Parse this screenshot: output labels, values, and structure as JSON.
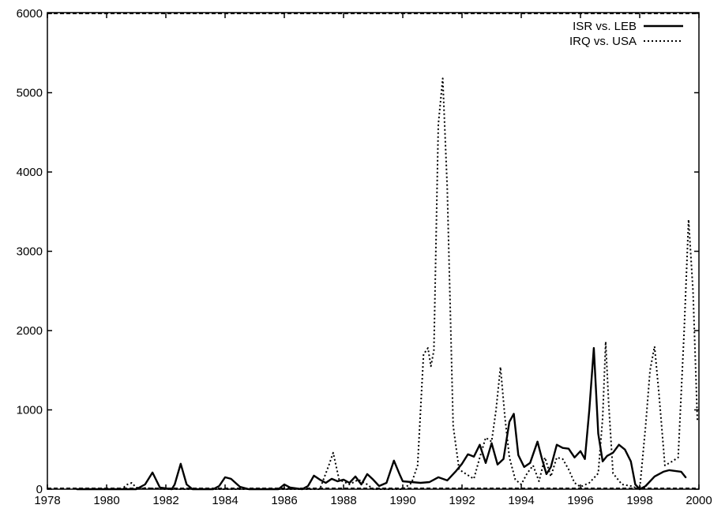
{
  "chart_data": {
    "type": "line",
    "title": "",
    "xlabel": "",
    "ylabel": "",
    "xlim": [
      1978,
      2000
    ],
    "ylim": [
      0,
      6000
    ],
    "xticks": [
      1978,
      1980,
      1982,
      1984,
      1986,
      1988,
      1990,
      1992,
      1994,
      1996,
      1998,
      2000
    ],
    "yticks": [
      0,
      1000,
      2000,
      3000,
      4000,
      5000,
      6000
    ],
    "grid": false,
    "legend_position": "top-right",
    "series": [
      {
        "name": "ISR vs. LEB",
        "style": "solid",
        "color": "#000000",
        "points": [
          [
            1979.0,
            0
          ],
          [
            1980.0,
            0
          ],
          [
            1981.0,
            0
          ],
          [
            1981.3,
            60
          ],
          [
            1981.55,
            210
          ],
          [
            1981.8,
            20
          ],
          [
            1982.2,
            0
          ],
          [
            1982.3,
            60
          ],
          [
            1982.5,
            320
          ],
          [
            1982.7,
            60
          ],
          [
            1982.9,
            0
          ],
          [
            1983.6,
            0
          ],
          [
            1983.8,
            40
          ],
          [
            1984.0,
            150
          ],
          [
            1984.2,
            130
          ],
          [
            1984.5,
            30
          ],
          [
            1984.8,
            0
          ],
          [
            1985.8,
            0
          ],
          [
            1986.0,
            60
          ],
          [
            1986.2,
            20
          ],
          [
            1986.6,
            0
          ],
          [
            1986.8,
            40
          ],
          [
            1987.0,
            170
          ],
          [
            1987.2,
            120
          ],
          [
            1987.4,
            80
          ],
          [
            1987.6,
            130
          ],
          [
            1987.8,
            100
          ],
          [
            1988.0,
            120
          ],
          [
            1988.2,
            80
          ],
          [
            1988.4,
            160
          ],
          [
            1988.6,
            60
          ],
          [
            1988.8,
            190
          ],
          [
            1989.0,
            120
          ],
          [
            1989.2,
            40
          ],
          [
            1989.45,
            80
          ],
          [
            1989.7,
            360
          ],
          [
            1989.9,
            180
          ],
          [
            1990.0,
            100
          ],
          [
            1990.3,
            90
          ],
          [
            1990.6,
            80
          ],
          [
            1990.9,
            90
          ],
          [
            1991.2,
            150
          ],
          [
            1991.5,
            110
          ],
          [
            1991.8,
            230
          ],
          [
            1992.0,
            320
          ],
          [
            1992.2,
            440
          ],
          [
            1992.4,
            410
          ],
          [
            1992.6,
            560
          ],
          [
            1992.8,
            330
          ],
          [
            1993.0,
            580
          ],
          [
            1993.2,
            310
          ],
          [
            1993.4,
            380
          ],
          [
            1993.6,
            850
          ],
          [
            1993.75,
            950
          ],
          [
            1993.9,
            430
          ],
          [
            1994.1,
            280
          ],
          [
            1994.3,
            330
          ],
          [
            1994.55,
            600
          ],
          [
            1994.7,
            380
          ],
          [
            1994.85,
            190
          ],
          [
            1995.0,
            280
          ],
          [
            1995.2,
            560
          ],
          [
            1995.4,
            520
          ],
          [
            1995.6,
            510
          ],
          [
            1995.8,
            400
          ],
          [
            1996.0,
            480
          ],
          [
            1996.15,
            380
          ],
          [
            1996.3,
            1000
          ],
          [
            1996.45,
            1780
          ],
          [
            1996.6,
            700
          ],
          [
            1996.75,
            350
          ],
          [
            1996.9,
            420
          ],
          [
            1997.1,
            460
          ],
          [
            1997.3,
            560
          ],
          [
            1997.5,
            500
          ],
          [
            1997.7,
            350
          ],
          [
            1997.85,
            60
          ],
          [
            1998.0,
            0
          ],
          [
            1998.2,
            40
          ],
          [
            1998.5,
            160
          ],
          [
            1998.8,
            220
          ],
          [
            1999.0,
            240
          ],
          [
            1999.2,
            230
          ],
          [
            1999.4,
            220
          ],
          [
            1999.55,
            150
          ]
        ]
      },
      {
        "name": "IRQ vs. USA",
        "style": "dotted",
        "color": "#000000",
        "points": [
          [
            1979.0,
            0
          ],
          [
            1980.5,
            0
          ],
          [
            1980.7,
            60
          ],
          [
            1980.85,
            80
          ],
          [
            1981.0,
            20
          ],
          [
            1982.0,
            0
          ],
          [
            1985.0,
            0
          ],
          [
            1986.5,
            0
          ],
          [
            1987.2,
            0
          ],
          [
            1987.5,
            300
          ],
          [
            1987.65,
            460
          ],
          [
            1987.85,
            120
          ],
          [
            1988.2,
            60
          ],
          [
            1988.5,
            120
          ],
          [
            1988.8,
            60
          ],
          [
            1989.0,
            0
          ],
          [
            1990.0,
            0
          ],
          [
            1990.3,
            80
          ],
          [
            1990.5,
            300
          ],
          [
            1990.7,
            1700
          ],
          [
            1990.85,
            1780
          ],
          [
            1990.95,
            1550
          ],
          [
            1991.05,
            1750
          ],
          [
            1991.2,
            4600
          ],
          [
            1991.35,
            5180
          ],
          [
            1991.5,
            3800
          ],
          [
            1991.7,
            800
          ],
          [
            1991.9,
            250
          ],
          [
            1992.1,
            200
          ],
          [
            1992.4,
            130
          ],
          [
            1992.6,
            400
          ],
          [
            1992.8,
            650
          ],
          [
            1993.0,
            600
          ],
          [
            1993.15,
            1000
          ],
          [
            1993.3,
            1540
          ],
          [
            1993.45,
            900
          ],
          [
            1993.6,
            400
          ],
          [
            1993.8,
            120
          ],
          [
            1994.0,
            60
          ],
          [
            1994.2,
            200
          ],
          [
            1994.4,
            300
          ],
          [
            1994.6,
            100
          ],
          [
            1994.8,
            400
          ],
          [
            1995.0,
            160
          ],
          [
            1995.2,
            400
          ],
          [
            1995.4,
            380
          ],
          [
            1995.6,
            250
          ],
          [
            1995.8,
            80
          ],
          [
            1996.0,
            30
          ],
          [
            1996.3,
            80
          ],
          [
            1996.6,
            200
          ],
          [
            1996.75,
            900
          ],
          [
            1996.85,
            1860
          ],
          [
            1996.95,
            1100
          ],
          [
            1997.1,
            200
          ],
          [
            1997.4,
            60
          ],
          [
            1997.7,
            40
          ],
          [
            1998.0,
            0
          ],
          [
            1998.2,
            800
          ],
          [
            1998.35,
            1500
          ],
          [
            1998.5,
            1800
          ],
          [
            1998.65,
            1200
          ],
          [
            1998.85,
            300
          ],
          [
            1999.1,
            350
          ],
          [
            1999.3,
            400
          ],
          [
            1999.5,
            2000
          ],
          [
            1999.65,
            3400
          ],
          [
            1999.8,
            2500
          ],
          [
            1999.95,
            850
          ]
        ]
      }
    ]
  }
}
